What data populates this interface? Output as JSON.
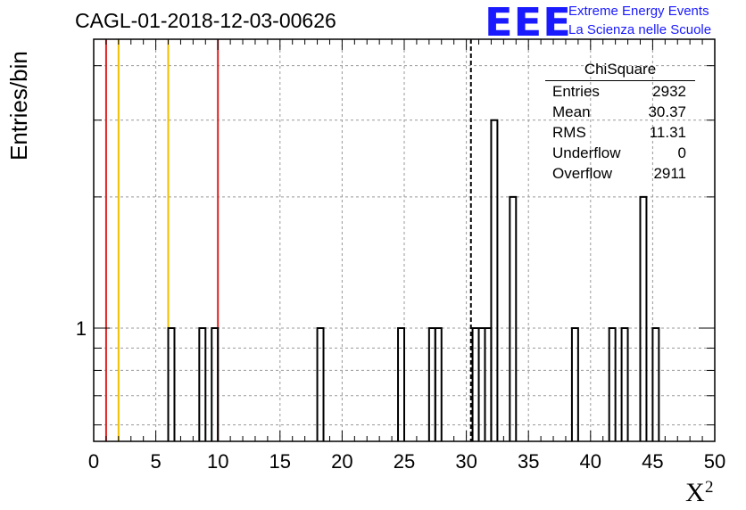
{
  "chart_data": {
    "type": "bar",
    "title": "CAGL-01-2018-12-03-00626",
    "xlabel": "X",
    "xlabel_sup": "2",
    "ylabel": "Entries/bin",
    "xlim": [
      0,
      50
    ],
    "ylim": [
      0.55,
      4.6
    ],
    "yscale": "log",
    "grid": true,
    "xticks": [
      "0",
      "5",
      "10",
      "15",
      "20",
      "25",
      "30",
      "35",
      "40",
      "45",
      "50"
    ],
    "yticks": [
      "1"
    ],
    "bin_width": 0.5,
    "bins": [
      {
        "x": 6.0,
        "y": 1
      },
      {
        "x": 8.5,
        "y": 1
      },
      {
        "x": 9.5,
        "y": 1
      },
      {
        "x": 18.0,
        "y": 1
      },
      {
        "x": 24.5,
        "y": 1
      },
      {
        "x": 27.0,
        "y": 1
      },
      {
        "x": 27.5,
        "y": 1
      },
      {
        "x": 30.5,
        "y": 1
      },
      {
        "x": 31.0,
        "y": 1
      },
      {
        "x": 31.5,
        "y": 1
      },
      {
        "x": 32.0,
        "y": 3
      },
      {
        "x": 33.5,
        "y": 2
      },
      {
        "x": 38.5,
        "y": 1
      },
      {
        "x": 41.5,
        "y": 1
      },
      {
        "x": 42.5,
        "y": 1
      },
      {
        "x": 44.0,
        "y": 2
      },
      {
        "x": 45.0,
        "y": 1
      }
    ],
    "vlines": [
      {
        "x": 1,
        "color": "#dd2222",
        "style": "solid"
      },
      {
        "x": 2,
        "color": "#f0c000",
        "style": "solid"
      },
      {
        "x": 6,
        "color": "#f0c000",
        "style": "solid"
      },
      {
        "x": 10,
        "color": "#dd2222",
        "style": "solid"
      },
      {
        "x": 30.37,
        "color": "#000000",
        "style": "dashed"
      }
    ]
  },
  "logo": {
    "mark": "EEE",
    "line1": "Extreme Energy Events",
    "line2": "La Scienza nelle Scuole"
  },
  "stats": {
    "title": "ChiSquare",
    "rows": [
      {
        "label": "Entries",
        "value": "2932"
      },
      {
        "label": "Mean",
        "value": "30.37"
      },
      {
        "label": "RMS",
        "value": "11.31"
      },
      {
        "label": "Underflow",
        "value": "0"
      },
      {
        "label": "Overflow",
        "value": "2911"
      }
    ]
  }
}
